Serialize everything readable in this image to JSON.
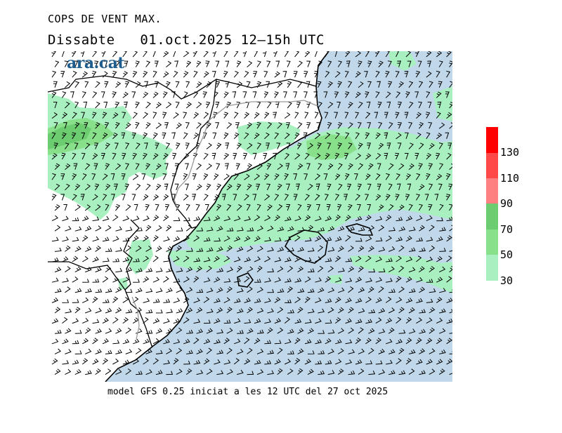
{
  "title": "COPS DE VENT MAX.",
  "subtitle": "Dissabte   01.oct.2025 12–15h UTC",
  "logo": "ara.cat",
  "footer": "model GFS 0.25 iniciat a les 12 UTC del 27 oct 2025",
  "colors": {
    "sea": "#c0d8ea",
    "land": "#ffffff",
    "wind30": "#a8f0c0",
    "wind50": "#88e08a",
    "wind70": "#6ccc70",
    "wind90": "#ff8080",
    "wind110": "#ff4848",
    "wind130": "#ff0000",
    "coast": "#000000",
    "border": "#999999"
  },
  "legend": {
    "levels": [
      "30",
      "50",
      "70",
      "90",
      "110",
      "130"
    ],
    "colors": [
      "#a8f0c0",
      "#88e08a",
      "#6ccc70",
      "#ff8080",
      "#ff4848",
      "#ff0000"
    ]
  }
}
